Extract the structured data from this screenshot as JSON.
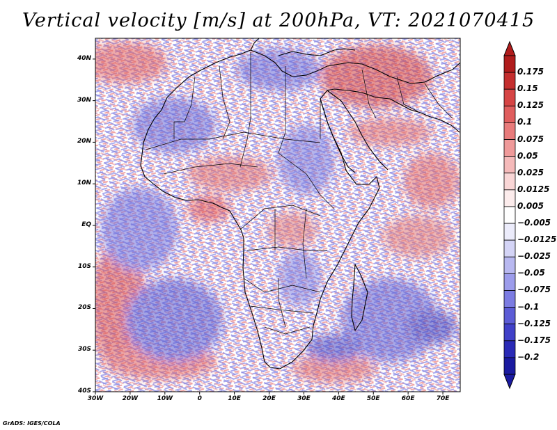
{
  "title": "Vertical velocity [m/s] at 200hPa, VT: 2021070415",
  "credit": "GrADS: IGES/COLA",
  "map": {
    "lon_range": [
      -30,
      75
    ],
    "lat_range": [
      -40,
      45
    ],
    "lat_ticks": [
      {
        "lat": 40,
        "label": "40N"
      },
      {
        "lat": 30,
        "label": "30N"
      },
      {
        "lat": 20,
        "label": "20N"
      },
      {
        "lat": 10,
        "label": "10N"
      },
      {
        "lat": 0,
        "label": "EQ"
      },
      {
        "lat": -10,
        "label": "10S"
      },
      {
        "lat": -20,
        "label": "20S"
      },
      {
        "lat": -30,
        "label": "30S"
      },
      {
        "lat": -40,
        "label": "40S"
      }
    ],
    "lon_ticks": [
      {
        "lon": -30,
        "label": "30W"
      },
      {
        "lon": -20,
        "label": "20W"
      },
      {
        "lon": -10,
        "label": "10W"
      },
      {
        "lon": 0,
        "label": "0"
      },
      {
        "lon": 10,
        "label": "10E"
      },
      {
        "lon": 20,
        "label": "20E"
      },
      {
        "lon": 30,
        "label": "30E"
      },
      {
        "lon": 40,
        "label": "40E"
      },
      {
        "lon": 50,
        "label": "50E"
      },
      {
        "lon": 60,
        "label": "60E"
      },
      {
        "lon": 70,
        "label": "70E"
      }
    ]
  },
  "colorbar": {
    "labels": [
      "0.175",
      "0.15",
      "0.125",
      "0.1",
      "0.075",
      "0.05",
      "0.025",
      "0.0125",
      "0.005",
      "−0.005",
      "−0.0125",
      "−0.025",
      "−0.05",
      "−0.075",
      "−0.1",
      "−0.125",
      "−0.175",
      "−0.2"
    ],
    "colors": [
      "#b01c1c",
      "#c42e2e",
      "#d64545",
      "#e05e5e",
      "#e87b7b",
      "#ef9a9a",
      "#f5baba",
      "#f9d6d6",
      "#fcecec",
      "#ffffff",
      "#ececfb",
      "#d4d4f6",
      "#b8b8f0",
      "#9c9ceb",
      "#7c7ce2",
      "#5c5cd6",
      "#4040c8",
      "#2a2ab6",
      "#1a1aa0"
    ]
  }
}
